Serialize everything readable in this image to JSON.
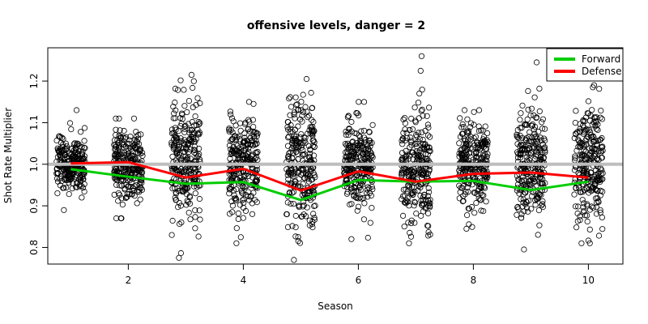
{
  "chart_data": {
    "type": "scatter",
    "title": "offensive levels, danger = 2",
    "xlabel": "Season",
    "ylabel": "Shot Rate Multiplier",
    "xlim": [
      0.6,
      10.6
    ],
    "ylim": [
      0.76,
      1.28
    ],
    "x_ticks": [
      "2",
      "4",
      "6",
      "8",
      "10"
    ],
    "y_ticks": [
      "0.8",
      "0.9",
      "1.0",
      "1.1",
      "1.2"
    ],
    "reference_line": 1.0,
    "legend_position": "top-right",
    "points_per_season": 260,
    "scatter_summary": [
      {
        "x": 1,
        "sd": 0.033,
        "min": 0.89,
        "max": 1.13
      },
      {
        "x": 2,
        "sd": 0.04,
        "min": 0.87,
        "max": 1.11
      },
      {
        "x": 3,
        "sd": 0.075,
        "min": 0.775,
        "max": 1.215
      },
      {
        "x": 4,
        "sd": 0.062,
        "min": 0.81,
        "max": 1.15
      },
      {
        "x": 5,
        "sd": 0.078,
        "min": 0.77,
        "max": 1.205
      },
      {
        "x": 6,
        "sd": 0.047,
        "min": 0.82,
        "max": 1.15
      },
      {
        "x": 7,
        "sd": 0.066,
        "min": 0.81,
        "max": 1.26
      },
      {
        "x": 8,
        "sd": 0.048,
        "min": 0.845,
        "max": 1.13
      },
      {
        "x": 9,
        "sd": 0.064,
        "min": 0.795,
        "max": 1.245
      },
      {
        "x": 10,
        "sd": 0.072,
        "min": 0.81,
        "max": 1.19
      }
    ],
    "series": [
      {
        "name": "Forward",
        "color": "#00cd00",
        "x": [
          1,
          2,
          3,
          4,
          5,
          6,
          7,
          8,
          9,
          10
        ],
        "values": [
          0.988,
          0.97,
          0.953,
          0.957,
          0.914,
          0.962,
          0.958,
          0.96,
          0.938,
          0.958
        ]
      },
      {
        "name": "Defense",
        "color": "#ff0000",
        "x": [
          1,
          2,
          3,
          4,
          5,
          6,
          7,
          8,
          9,
          10
        ],
        "values": [
          1.002,
          1.005,
          0.968,
          0.989,
          0.937,
          0.983,
          0.958,
          0.977,
          0.98,
          0.968
        ]
      }
    ]
  }
}
